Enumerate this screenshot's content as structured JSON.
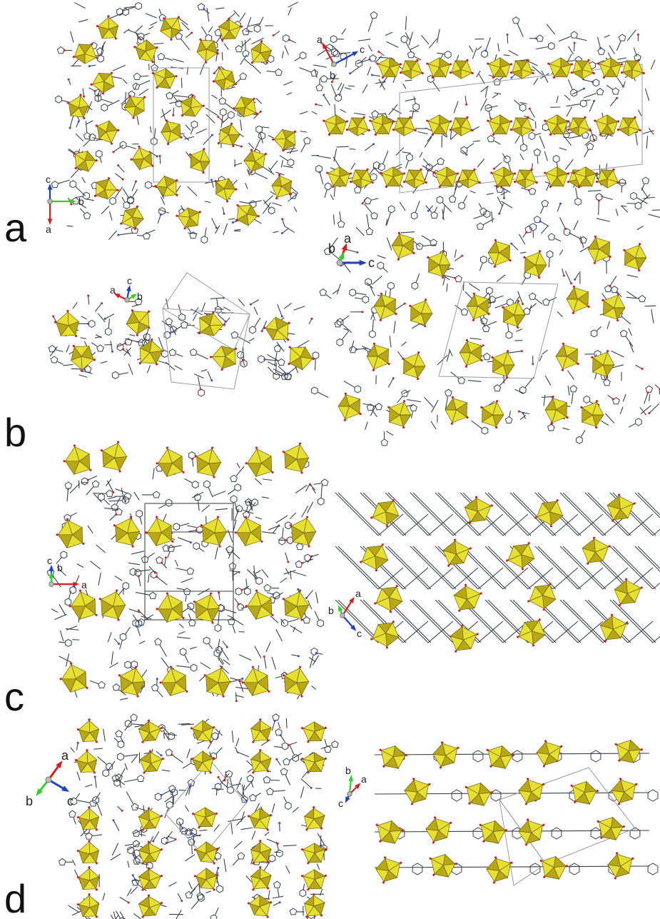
{
  "figure": {
    "panels": [
      {
        "letter": "a",
        "views": [
          {
            "axes": [
              {
                "label": "c",
                "color": "#1f3fbf"
              },
              {
                "label": "b",
                "color": "#2fcf2f"
              },
              {
                "label": "a",
                "color": "#d02020"
              }
            ]
          },
          {
            "axes": [
              {
                "label": "a",
                "color": "#d02020"
              },
              {
                "label": "c",
                "color": "#1f3fbf"
              },
              {
                "label": "b",
                "color": "#2fcf2f"
              }
            ]
          }
        ]
      },
      {
        "letter": "b",
        "views": [
          {
            "axes": [
              {
                "label": "a",
                "color": "#d02020"
              },
              {
                "label": "c",
                "color": "#1f3fbf"
              },
              {
                "label": "b",
                "color": "#2fcf2f"
              }
            ]
          },
          {
            "axes": [
              {
                "label": "a",
                "color": "#d02020"
              },
              {
                "label": "b",
                "color": "#2fcf2f"
              },
              {
                "label": "c",
                "color": "#1f3fbf"
              }
            ]
          }
        ]
      },
      {
        "letter": "c",
        "views": [
          {
            "axes": [
              {
                "label": "c",
                "color": "#1f3fbf"
              },
              {
                "label": "a",
                "color": "#d02020"
              },
              {
                "label": "b",
                "color": "#2fcf2f"
              }
            ]
          },
          {
            "axes": [
              {
                "label": "a",
                "color": "#d02020"
              },
              {
                "label": "b",
                "color": "#2fcf2f"
              },
              {
                "label": "c",
                "color": "#1f3fbf"
              }
            ]
          }
        ]
      },
      {
        "letter": "d",
        "views": [
          {
            "axes": [
              {
                "label": "a",
                "color": "#d02020"
              },
              {
                "label": "b",
                "color": "#2fcf2f"
              },
              {
                "label": "c",
                "color": "#1f3fbf"
              }
            ]
          },
          {
            "axes": [
              {
                "label": "b",
                "color": "#2fcf2f"
              },
              {
                "label": "a",
                "color": "#d02020"
              },
              {
                "label": "c",
                "color": "#1f3fbf"
              }
            ]
          }
        ]
      }
    ],
    "colors": {
      "polyhedron_face": "#e8e030",
      "polyhedron_shade": "#b8a818",
      "polyhedron_edge": "#6a6010",
      "ligand": "#3a3f4a",
      "oxygen": "#d02020",
      "nitrogen": "#3050d0",
      "unit_cell": "#9a9a9a",
      "unit_cell_dark": "#333333"
    }
  }
}
